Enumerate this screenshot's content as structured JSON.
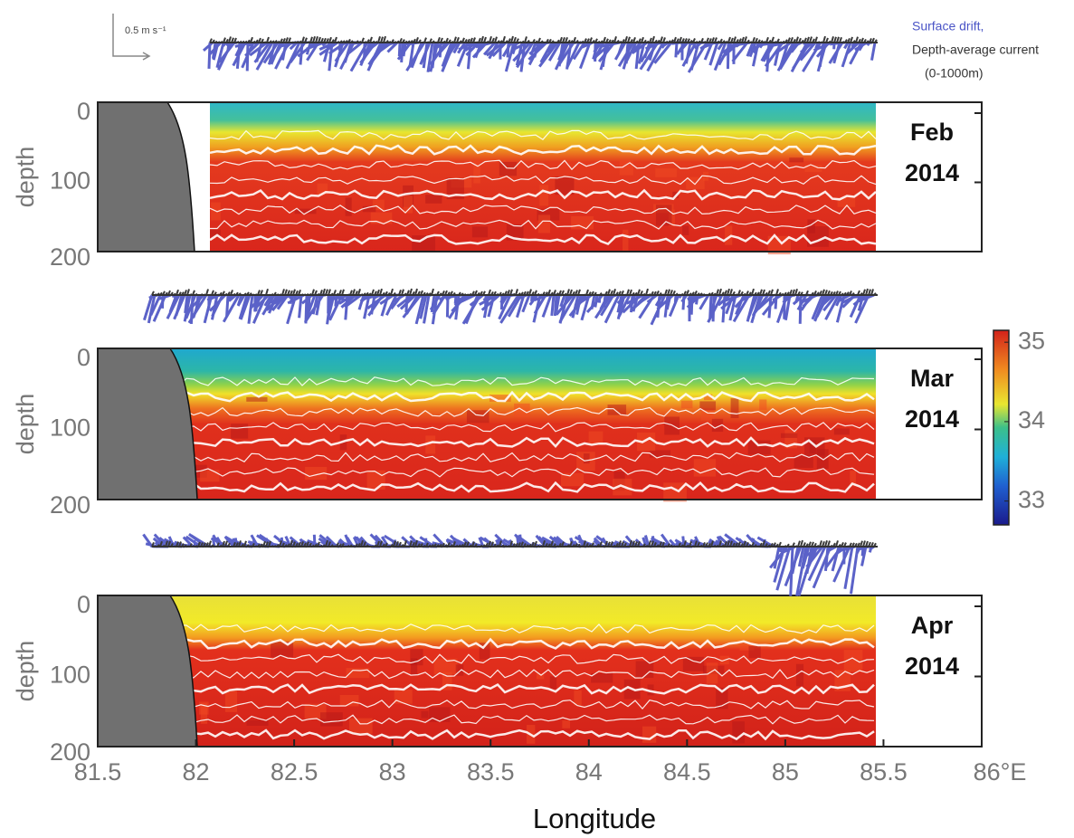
{
  "chart_data": [
    {
      "type": "heatmap",
      "month": "Feb",
      "year": "2014",
      "ylabel": "depth",
      "ylim": [
        0,
        200
      ],
      "yticks": [
        0,
        100,
        200
      ],
      "xlim": [
        81.5,
        86
      ],
      "legend": {
        "scale_label": "0.5 m s⁻¹",
        "surface": "Surface drift,",
        "depth": "Depth-average current",
        "range": "(0-1000m)"
      }
    },
    {
      "type": "heatmap",
      "month": "Mar",
      "year": "2014",
      "ylabel": "depth",
      "ylim": [
        0,
        200
      ],
      "yticks": [
        0,
        100,
        200
      ],
      "xlim": [
        81.5,
        86
      ],
      "colorbar": {
        "clim": [
          32.7,
          35.15
        ],
        "ticks": [
          33,
          34,
          35
        ]
      }
    },
    {
      "type": "heatmap",
      "month": "Apr",
      "year": "2014",
      "ylabel": "depth",
      "ylim": [
        0,
        200
      ],
      "yticks": [
        0,
        100,
        200
      ],
      "xlim": [
        81.5,
        86
      ],
      "xticks": [
        81.5,
        82,
        82.5,
        83,
        83.5,
        84,
        84.5,
        85,
        85.5,
        {
          "value": 86,
          "label": "86°E"
        }
      ],
      "xlabel": "Longitude"
    }
  ]
}
